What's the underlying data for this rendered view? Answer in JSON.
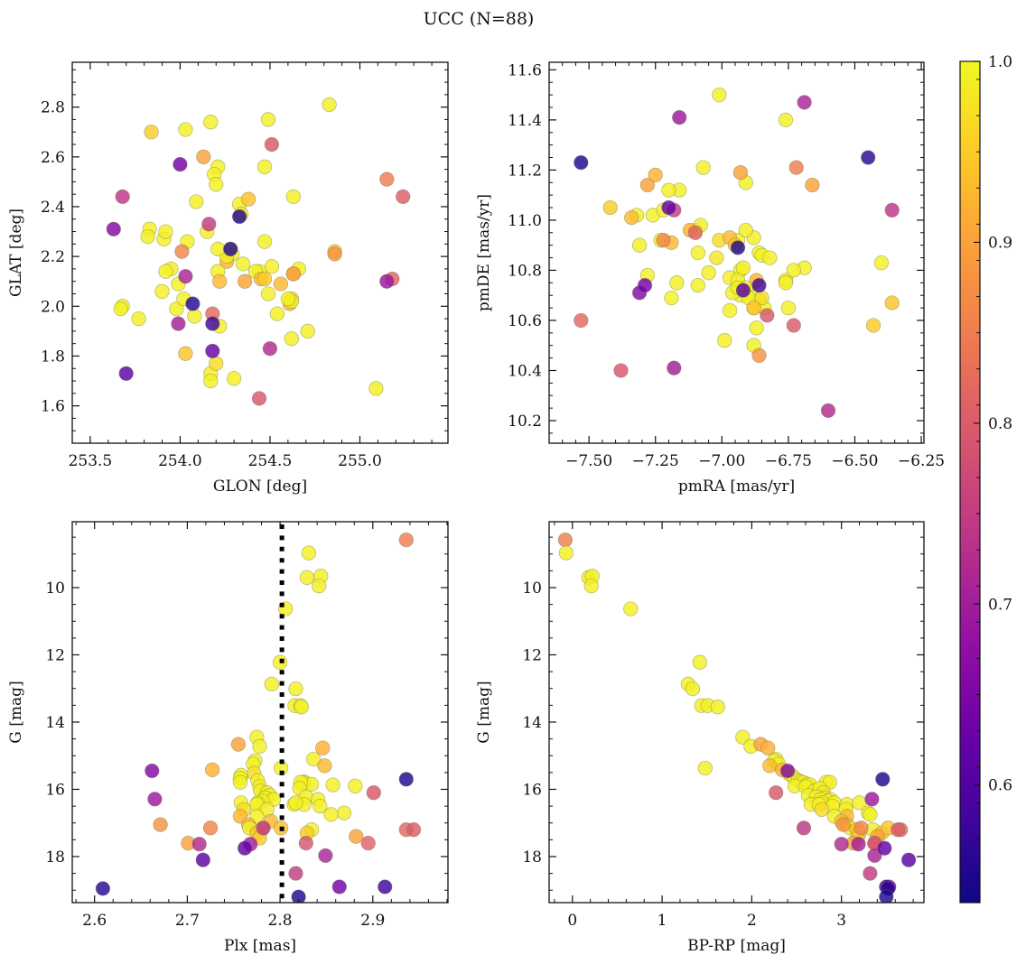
{
  "chart_data": {
    "type": "scatter",
    "title": "UCC (N=88)",
    "colorbar": {
      "colormap": "plasma",
      "range": [
        0.535,
        1.0
      ],
      "ticks": [
        0.6,
        0.7,
        0.8,
        0.9,
        1.0
      ],
      "tick_labels": [
        "0.6",
        "0.7",
        "0.8",
        "0.9",
        "1.0"
      ],
      "label": ""
    },
    "panels": [
      {
        "id": "glon-glat",
        "xkey": "glon",
        "ykey": "glat",
        "xlabel": "GLON [deg]",
        "ylabel": "GLAT [deg]",
        "xlim": [
          253.4,
          255.49
        ],
        "ylim": [
          1.45,
          2.98
        ],
        "xticks": [
          253.5,
          254.0,
          254.5,
          255.0
        ],
        "xtick_labels": [
          "253.5",
          "254.0",
          "254.5",
          "255.0"
        ],
        "xminor": 0.1,
        "yticks": [
          1.6,
          1.8,
          2.0,
          2.2,
          2.4,
          2.6,
          2.8
        ],
        "ytick_labels": [
          "1.6",
          "1.8",
          "2.0",
          "2.2",
          "2.4",
          "2.6",
          "2.8"
        ],
        "yminor": 0.05,
        "invert_y": false
      },
      {
        "id": "pm",
        "xkey": "pmra",
        "ykey": "pmde",
        "xlabel": "pmRA [mas/yr]",
        "ylabel": "pmDE [mas/yr]",
        "xlim": [
          -7.65,
          -6.24
        ],
        "ylim": [
          10.11,
          11.63
        ],
        "xticks": [
          -7.5,
          -7.25,
          -7.0,
          -6.75,
          -6.5,
          -6.25
        ],
        "xtick_labels": [
          "−7.50",
          "−7.25",
          "−7.00",
          "−6.75",
          "−6.50",
          "−6.25"
        ],
        "xminor": 0.05,
        "yticks": [
          10.2,
          10.4,
          10.6,
          10.8,
          11.0,
          11.2,
          11.4,
          11.6
        ],
        "ytick_labels": [
          "10.2",
          "10.4",
          "10.6",
          "10.8",
          "11.0",
          "11.2",
          "11.4",
          "11.6"
        ],
        "yminor": 0.05,
        "invert_y": false
      },
      {
        "id": "plx-g",
        "xkey": "plx",
        "ykey": "g",
        "xlabel": "Plx [mas]",
        "ylabel": "G [mag]",
        "xlim": [
          2.576,
          2.981
        ],
        "ylim": [
          8.04,
          19.37
        ],
        "xticks": [
          2.6,
          2.7,
          2.8,
          2.9
        ],
        "xtick_labels": [
          "2.6",
          "2.7",
          "2.8",
          "2.9"
        ],
        "xminor": 0.02,
        "yticks": [
          10,
          12,
          14,
          16,
          18
        ],
        "ytick_labels": [
          "10",
          "12",
          "14",
          "16",
          "18"
        ],
        "yminor": 0.5,
        "invert_y": true,
        "vline": 2.802
      },
      {
        "id": "cmd",
        "xkey": "bprp",
        "ykey": "g",
        "xlabel": "BP-RP [mag]",
        "ylabel": "G [mag]",
        "xlim": [
          -0.26,
          3.92
        ],
        "ylim": [
          8.04,
          19.37
        ],
        "xticks": [
          0,
          1,
          2,
          3
        ],
        "xtick_labels": [
          "0",
          "1",
          "2",
          "3"
        ],
        "xminor": 0.2,
        "yticks": [
          10,
          12,
          14,
          16,
          18
        ],
        "ytick_labels": [
          "10",
          "12",
          "14",
          "16",
          "18"
        ],
        "yminor": 0.5,
        "invert_y": true
      }
    ],
    "fields": [
      "glon",
      "glat",
      "pmra",
      "pmde",
      "plx",
      "bprp",
      "g",
      "prob"
    ],
    "stars": [
      [
        255.15,
        2.51,
        -6.72,
        11.21,
        2.936,
        -0.08,
        8.58,
        0.85
      ],
      [
        254.17,
        2.74,
        -6.91,
        11.15,
        2.831,
        -0.07,
        8.97,
        0.99
      ],
      [
        254.49,
        2.75,
        -7.01,
        11.5,
        2.829,
        0.18,
        9.7,
        0.99
      ],
      [
        254.03,
        2.71,
        -6.76,
        11.4,
        2.844,
        0.22,
        9.66,
        0.99
      ],
      [
        254.83,
        2.81,
        -7.07,
        11.21,
        2.842,
        0.21,
        9.95,
        0.99
      ],
      [
        254.29,
        2.21,
        -7.1,
        10.96,
        2.806,
        0.65,
        10.63,
        0.99
      ],
      [
        254.21,
        2.56,
        -6.94,
        10.92,
        2.8,
        1.42,
        12.22,
        0.99
      ],
      [
        254.63,
        2.44,
        -6.88,
        10.93,
        2.791,
        1.29,
        12.87,
        0.99
      ],
      [
        254.09,
        2.42,
        -7.08,
        10.98,
        2.817,
        1.34,
        13.01,
        0.99
      ],
      [
        254.33,
        2.41,
        -6.91,
        10.96,
        2.816,
        1.44,
        13.51,
        0.99
      ],
      [
        254.19,
        2.53,
        -6.93,
        10.8,
        2.822,
        1.51,
        13.51,
        0.99
      ],
      [
        254.47,
        2.56,
        -6.86,
        10.87,
        2.823,
        1.62,
        13.55,
        0.99
      ],
      [
        254.2,
        2.49,
        -6.85,
        10.86,
        2.801,
        1.48,
        15.37,
        0.99
      ],
      [
        253.83,
        2.31,
        -7.16,
        11.12,
        2.775,
        1.9,
        14.45,
        0.99
      ],
      [
        253.68,
        2.0,
        -7.2,
        11.12,
        2.778,
        1.99,
        14.72,
        0.99
      ],
      [
        254.36,
        2.1,
        -7.28,
        11.14,
        2.755,
        2.1,
        14.66,
        0.9
      ],
      [
        254.61,
        2.01,
        -7.25,
        11.18,
        2.846,
        2.18,
        14.77,
        0.92
      ],
      [
        253.91,
        2.27,
        -7.26,
        11.02,
        2.836,
        2.27,
        15.1,
        0.99
      ],
      [
        254.15,
        2.3,
        -7.32,
        11.02,
        2.773,
        2.25,
        15.15,
        0.99
      ],
      [
        254.47,
        2.26,
        -7.22,
        11.04,
        2.771,
        2.3,
        15.25,
        0.99
      ],
      [
        254.56,
        2.09,
        -7.34,
        11.01,
        2.848,
        2.2,
        15.3,
        0.93
      ],
      [
        254.26,
        2.18,
        -7.12,
        10.96,
        2.727,
        2.34,
        15.42,
        0.92
      ],
      [
        254.62,
        2.03,
        -7.01,
        10.92,
        2.772,
        2.41,
        15.52,
        0.97
      ],
      [
        254.51,
        2.16,
        -6.97,
        10.77,
        2.758,
        2.44,
        15.58,
        0.99
      ],
      [
        254.54,
        1.97,
        -6.94,
        10.76,
        2.757,
        2.48,
        15.67,
        0.99
      ],
      [
        253.98,
        1.99,
        -6.92,
        10.81,
        2.776,
        2.52,
        15.74,
        0.99
      ],
      [
        254.22,
        1.92,
        -6.89,
        10.71,
        2.826,
        2.55,
        15.78,
        0.99
      ],
      [
        254.26,
        2.2,
        -6.93,
        10.72,
        2.825,
        2.58,
        15.8,
        0.99
      ],
      [
        253.99,
        2.09,
        -6.86,
        10.68,
        2.834,
        2.62,
        15.85,
        0.99
      ],
      [
        254.62,
        2.02,
        -6.88,
        10.65,
        2.857,
        2.65,
        15.87,
        0.99
      ],
      [
        254.6,
        2.03,
        -6.84,
        10.65,
        2.881,
        2.48,
        15.9,
        0.99
      ],
      [
        254.28,
        2.23,
        -6.75,
        10.65,
        2.778,
        2.6,
        15.92,
        0.99
      ],
      [
        254.49,
        2.05,
        -6.76,
        10.76,
        2.822,
        2.83,
        15.79,
        0.99
      ],
      [
        254.02,
        2.03,
        -6.82,
        10.85,
        2.757,
        2.87,
        15.79,
        0.99
      ],
      [
        253.95,
        2.15,
        -6.69,
        10.81,
        2.779,
        2.7,
        16.05,
        0.99
      ],
      [
        254.44,
        2.14,
        -7.05,
        10.79,
        2.821,
        2.76,
        15.97,
        0.99
      ],
      [
        254.34,
        2.37,
        -7.02,
        10.85,
        2.786,
        2.8,
        16.1,
        0.98
      ],
      [
        254.21,
        2.14,
        -7.09,
        10.87,
        2.789,
        2.63,
        16.18,
        0.99
      ],
      [
        254.35,
        2.17,
        -6.87,
        10.57,
        2.828,
        2.72,
        16.22,
        0.99
      ],
      [
        254.42,
        2.14,
        -6.88,
        10.5,
        2.784,
        2.82,
        16.25,
        0.99
      ],
      [
        253.9,
        2.06,
        -6.99,
        10.52,
        2.841,
        2.88,
        16.3,
        0.99
      ],
      [
        254.04,
        2.26,
        -6.97,
        10.64,
        2.793,
        2.77,
        16.3,
        0.99
      ],
      [
        253.92,
        2.3,
        -7.09,
        10.74,
        2.781,
        2.85,
        16.35,
        0.99
      ],
      [
        254.08,
        1.96,
        -7.17,
        10.75,
        2.758,
        2.78,
        16.4,
        0.99
      ],
      [
        253.82,
        2.28,
        -7.31,
        10.9,
        2.776,
        2.92,
        16.4,
        0.99
      ],
      [
        253.77,
        1.95,
        -7.28,
        10.78,
        2.815,
        2.66,
        16.45,
        0.99
      ],
      [
        254.71,
        1.9,
        -6.93,
        10.7,
        2.826,
        2.75,
        16.45,
        0.99
      ],
      [
        254.66,
        2.15,
        -6.91,
        10.73,
        2.843,
        2.9,
        16.5,
        0.99
      ],
      [
        254.17,
        1.73,
        -6.9,
        10.69,
        2.775,
        3.06,
        16.45,
        0.99
      ],
      [
        254.2,
        1.77,
        -6.85,
        10.69,
        2.761,
        2.78,
        16.6,
        0.97
      ],
      [
        254.62,
        1.87,
        -6.96,
        10.71,
        2.786,
        3.05,
        16.6,
        0.99
      ],
      [
        253.67,
        1.99,
        -6.94,
        10.73,
        2.817,
        3.2,
        16.4,
        0.99
      ],
      [
        254.3,
        1.71,
        -6.76,
        10.75,
        2.869,
        3.3,
        16.7,
        0.99
      ],
      [
        254.21,
        2.23,
        -6.73,
        10.8,
        2.855,
        3.32,
        16.75,
        0.99
      ],
      [
        254.45,
        2.11,
        -6.97,
        10.93,
        2.757,
        3.06,
        16.8,
        0.93
      ],
      [
        253.92,
        2.14,
        -7.23,
        10.92,
        2.775,
        2.92,
        16.8,
        0.99
      ],
      [
        254.22,
        2.1,
        -7.19,
        10.91,
        2.79,
        3.0,
        16.95,
        0.93
      ],
      [
        254.63,
        2.13,
        -6.87,
        10.76,
        2.766,
        3.06,
        17.05,
        0.92
      ],
      [
        254.17,
        1.7,
        -7.19,
        10.69,
        2.767,
        3.1,
        17.15,
        0.99
      ],
      [
        254.86,
        2.22,
        -6.95,
        10.9,
        2.78,
        3.17,
        17.2,
        0.94
      ],
      [
        255.09,
        1.67,
        -6.4,
        10.83,
        2.834,
        3.35,
        17.2,
        0.99
      ],
      [
        253.84,
        2.7,
        -7.42,
        11.05,
        2.829,
        3.2,
        17.3,
        0.95
      ],
      [
        254.03,
        1.81,
        -6.88,
        10.65,
        2.775,
        3.45,
        17.3,
        0.94
      ],
      [
        254.38,
        2.43,
        -6.36,
        10.67,
        2.801,
        3.52,
        17.15,
        0.94
      ],
      [
        254.47,
        2.11,
        -6.43,
        10.58,
        2.778,
        3.18,
        17.45,
        0.95
      ],
      [
        254.63,
        2.13,
        -6.66,
        11.14,
        2.882,
        3.4,
        17.4,
        0.9
      ],
      [
        254.13,
        2.6,
        -6.93,
        11.19,
        2.701,
        3.13,
        17.6,
        0.9
      ],
      [
        254.86,
        2.21,
        -6.86,
        10.46,
        2.671,
        3.02,
        17.05,
        0.88
      ],
      [
        254.01,
        2.22,
        -7.22,
        10.92,
        2.725,
        3.22,
        17.15,
        0.86
      ],
      [
        255.18,
        2.11,
        -7.1,
        10.95,
        2.895,
        3.37,
        17.6,
        0.81
      ],
      [
        254.18,
        1.97,
        -7.53,
        10.6,
        2.936,
        3.66,
        17.2,
        0.82
      ],
      [
        255.24,
        2.44,
        -6.73,
        10.58,
        2.944,
        3.63,
        17.2,
        0.8
      ],
      [
        254.44,
        1.63,
        -7.38,
        10.4,
        2.901,
        2.27,
        16.1,
        0.79
      ],
      [
        254.51,
        2.65,
        -6.83,
        10.62,
        2.828,
        3.37,
        17.6,
        0.79
      ],
      [
        254.16,
        2.33,
        -7.18,
        11.04,
        2.817,
        3.32,
        18.5,
        0.75
      ],
      [
        253.68,
        2.44,
        -6.36,
        11.04,
        2.782,
        2.58,
        17.15,
        0.74
      ],
      [
        254.5,
        1.83,
        -6.6,
        10.24,
        2.713,
        3.0,
        17.63,
        0.72
      ],
      [
        254.03,
        2.12,
        -6.69,
        11.47,
        2.849,
        3.37,
        17.97,
        0.71
      ],
      [
        253.99,
        1.93,
        -7.18,
        10.41,
        2.768,
        3.19,
        17.63,
        0.7
      ],
      [
        255.15,
        2.1,
        -7.16,
        11.41,
        2.665,
        3.34,
        16.29,
        0.69
      ],
      [
        253.63,
        2.31,
        -7.31,
        10.71,
        2.662,
        2.4,
        15.45,
        0.66
      ],
      [
        254.0,
        2.57,
        -7.29,
        10.74,
        2.864,
        3.53,
        18.9,
        0.64
      ],
      [
        254.18,
        1.82,
        -7.2,
        11.05,
        2.762,
        3.48,
        17.75,
        0.62
      ],
      [
        253.7,
        1.73,
        -6.92,
        10.72,
        2.717,
        3.75,
        18.1,
        0.61
      ],
      [
        254.18,
        1.93,
        -6.86,
        10.74,
        2.913,
        3.5,
        18.9,
        0.58
      ],
      [
        254.07,
        2.01,
        -6.45,
        11.25,
        2.609,
        3.52,
        18.95,
        0.56
      ],
      [
        254.28,
        2.23,
        -6.94,
        10.89,
        2.936,
        3.46,
        15.7,
        0.55
      ],
      [
        254.33,
        2.36,
        -7.53,
        11.23,
        2.82,
        3.5,
        19.2,
        0.55
      ]
    ]
  }
}
